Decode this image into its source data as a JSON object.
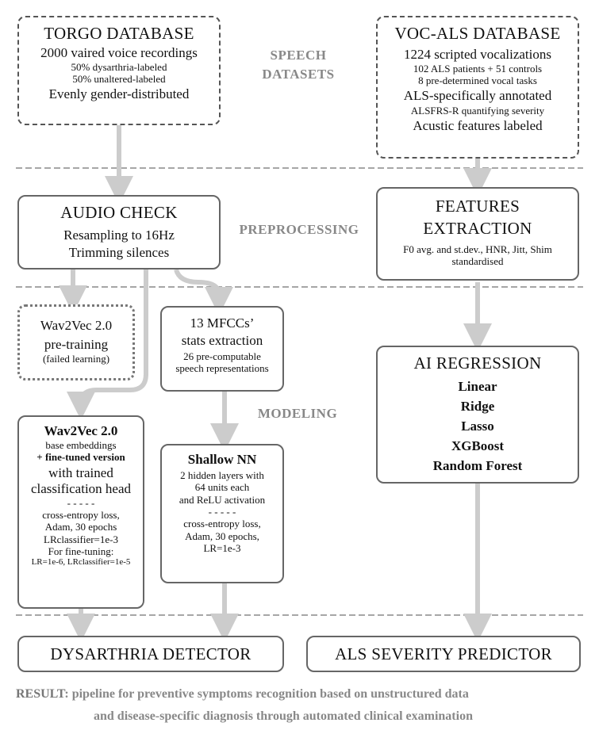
{
  "sections": {
    "speech_datasets": [
      "SPEECH",
      "DATASETS"
    ],
    "preprocessing": "PREPROCESSING",
    "modeling": "MODELING"
  },
  "torgo": {
    "title": "TORGO DATABASE",
    "line1": "2000 vaired voice recordings",
    "line2": "50% dysarthria-labeled",
    "line3": "50% unaltered-labeled",
    "line4": "Evenly gender-distributed"
  },
  "vocals": {
    "title": "VOC-ALS DATABASE",
    "line1": "1224 scripted vocalizations",
    "line2": "102 ALS patients + 51 controls",
    "line3": "8 pre-determined vocal tasks",
    "line4": "ALS-specifically annotated",
    "line5": "ALSFRS-R quantifying severity",
    "line6": "Acustic features labeled"
  },
  "audio_check": {
    "title": "AUDIO CHECK",
    "line1": "Resampling to 16Hz",
    "line2": "Trimming silences"
  },
  "features": {
    "title1": "FEATURES",
    "title2": "EXTRACTION",
    "line1": "F0 avg. and st.dev., HNR, Jitt, Shim",
    "line2": "standardised"
  },
  "wav2vec_pre": {
    "line1": "Wav2Vec 2.0",
    "line2": "pre-training",
    "line3": "(failed learning)"
  },
  "mfcc": {
    "line1": "13 MFCCs’",
    "line2": "stats extraction",
    "line3": "26 pre-computable",
    "line4": "speech representations"
  },
  "ai_regression": {
    "title": "AI REGRESSION",
    "models": [
      "Linear",
      "Ridge",
      "Lasso",
      "XGBoost",
      "Random Forest"
    ]
  },
  "wav2vec": {
    "title": "Wav2Vec 2.0",
    "line1": "base embeddings",
    "line2": "+ fine-tuned version",
    "line3": "with trained",
    "line4": "classification head",
    "sep": "- - - - -",
    "line5": "cross-entropy loss,",
    "line6": "Adam, 30 epochs",
    "line7": "LRclassifier=1e-3",
    "line8": "For fine-tuning:",
    "line9": "LR=1e-6, LRclassifier=1e-5"
  },
  "shallow_nn": {
    "title": "Shallow NN",
    "line1": "2 hidden layers with",
    "line2": "64 units each",
    "line3": "and ReLU activation",
    "sep": "- - - - -",
    "line4": "cross-entropy loss,",
    "line5": "Adam, 30 epochs,",
    "line6": "LR=1e-3"
  },
  "outputs": {
    "dysarthria": "DYSARTHRIA DETECTOR",
    "als": "ALS SEVERITY PREDICTOR"
  },
  "result": {
    "label": "RESULT",
    "line1": ": pipeline for preventive symptoms recognition based on unstructured  data",
    "line2": "and disease-specific diagnosis through automated clinical examination"
  },
  "colors": {
    "arrow": "#cccccc",
    "divider": "#888888",
    "section_text": "#888888"
  }
}
